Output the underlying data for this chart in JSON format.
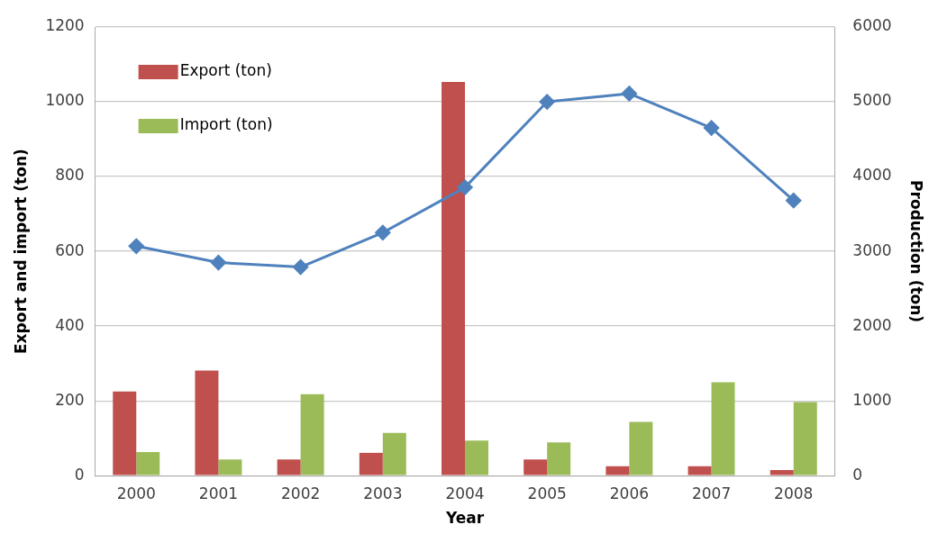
{
  "chart_data": {
    "type": "bar",
    "xlabel": "Year",
    "ylabel": "Export and import (ton)",
    "y2label": "Production (ton)",
    "categories": [
      "2000",
      "2001",
      "2002",
      "2003",
      "2004",
      "2005",
      "2006",
      "2007",
      "2008"
    ],
    "series": [
      {
        "name": "Export (ton)",
        "color": "#c0504d",
        "values": [
          225,
          281,
          43,
          61,
          1053,
          43,
          25,
          25,
          15
        ]
      },
      {
        "name": "Import (ton)",
        "color": "#9bbb59",
        "values": [
          63,
          43,
          218,
          114,
          94,
          89,
          144,
          250,
          197
        ]
      },
      {
        "type": "line",
        "axis": "y2",
        "color": "#4f81bd",
        "marker": "diamond",
        "values": [
          3070,
          2850,
          2790,
          3250,
          3855,
          5000,
          5110,
          4650,
          3680
        ]
      }
    ],
    "ylim": [
      0,
      1200
    ],
    "yticks": [
      0,
      200,
      400,
      600,
      800,
      1000,
      1200
    ],
    "y2lim": [
      0,
      6000
    ],
    "y2ticks": [
      0,
      1000,
      2000,
      3000,
      4000,
      5000,
      6000
    ],
    "grid": "y",
    "legend": "top left"
  }
}
